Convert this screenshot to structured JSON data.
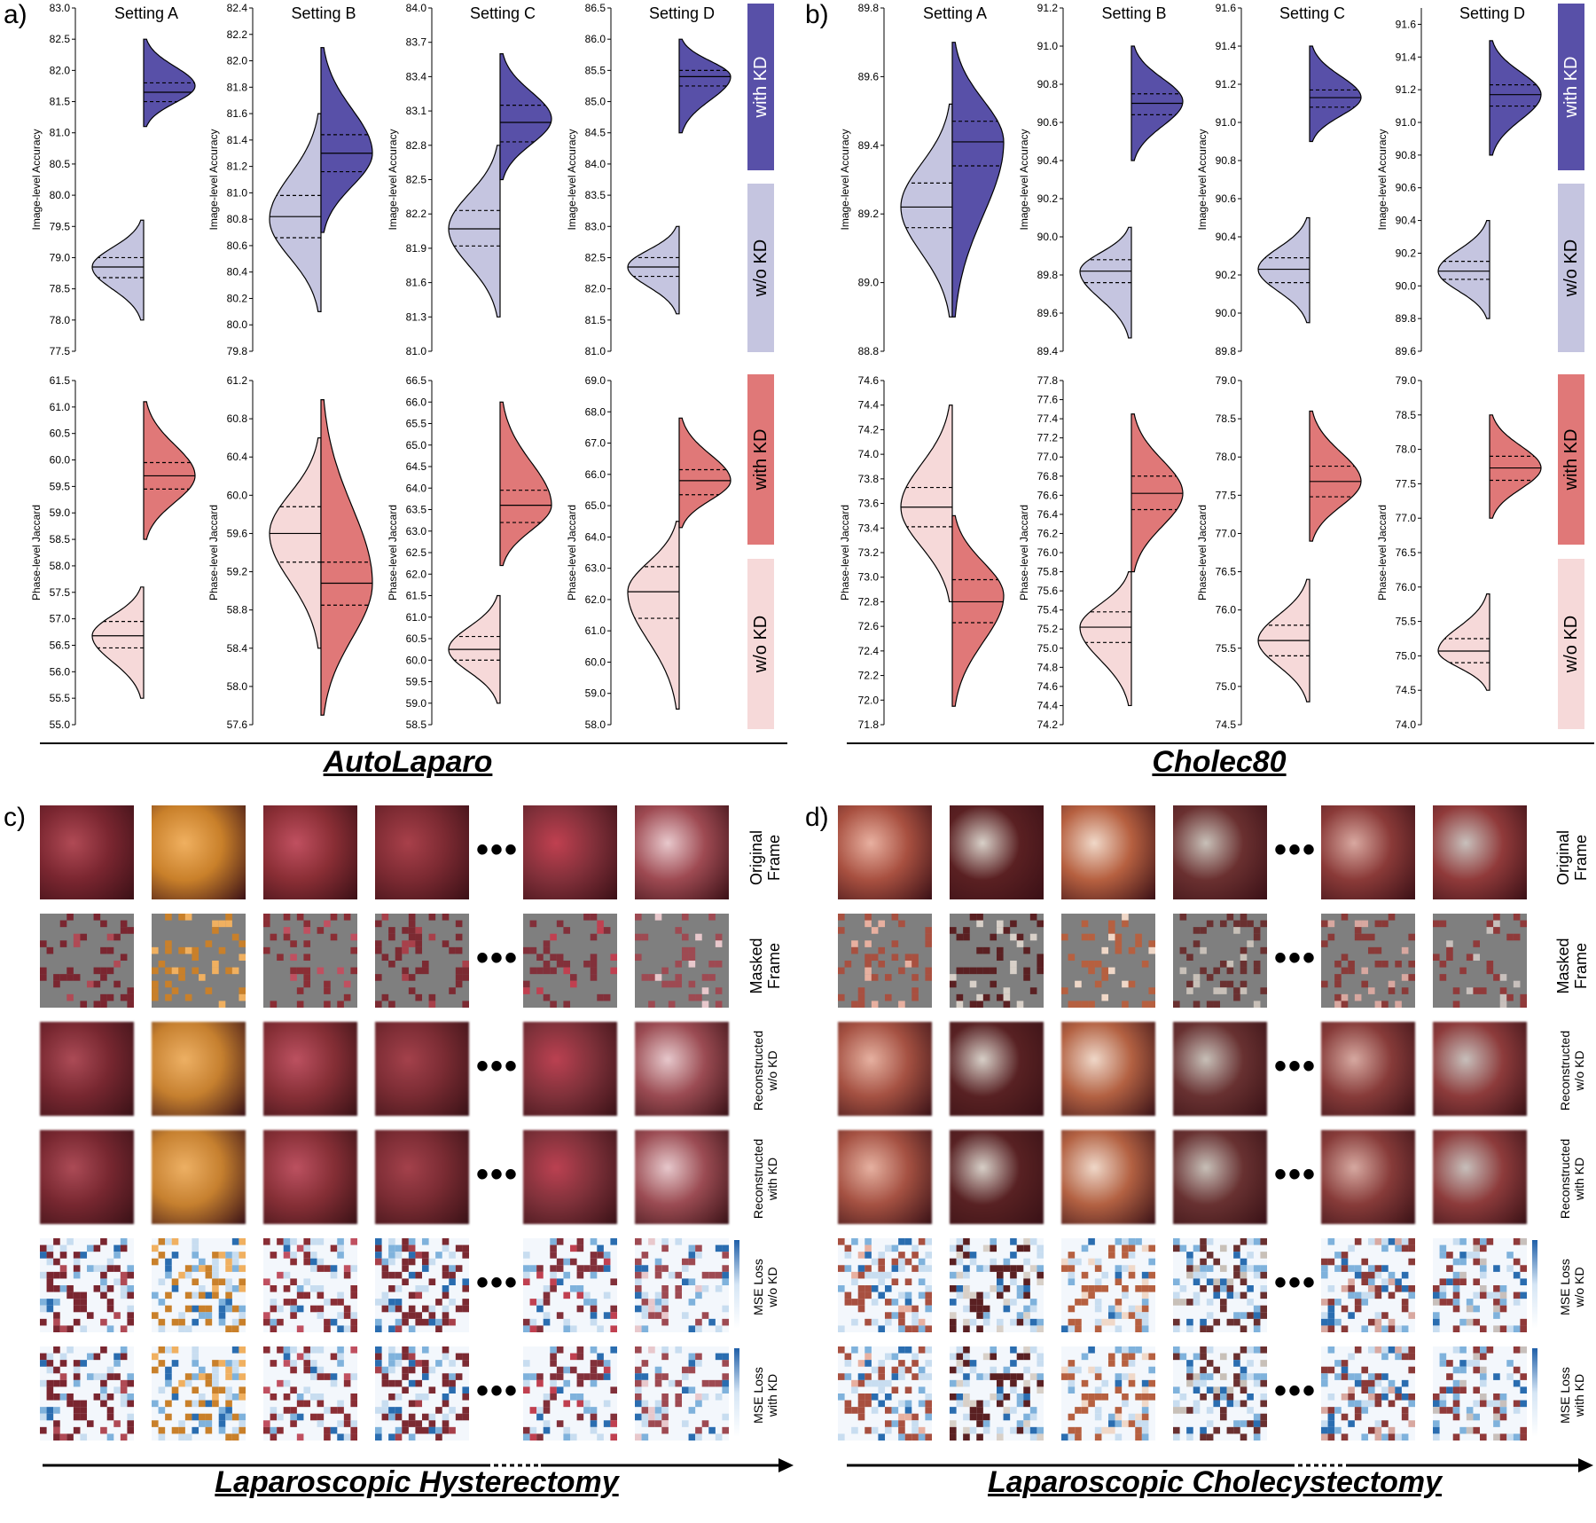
{
  "panels": {
    "a": {
      "letter": "a)",
      "group_title": "AutoLaparo"
    },
    "b": {
      "letter": "b)",
      "group_title": "Cholec80"
    },
    "c": {
      "letter": "c)",
      "bottom_title": "Laparoscopic Hysterectomy"
    },
    "d": {
      "letter": "d)",
      "bottom_title": "Laparoscopic Cholecystectomy"
    }
  },
  "settings": [
    "Setting A",
    "Setting B",
    "Setting C",
    "Setting D"
  ],
  "side_labels": {
    "with": "with KD",
    "without": "w/o KD"
  },
  "colors": {
    "acc_without": "#c5c5e0",
    "acc_with": "#5850a8",
    "jac_without": "#f6d9d9",
    "jac_with": "#e07878"
  },
  "row_labels": {
    "original_1": "Original",
    "original_2": "Frame",
    "masked_1": "Masked",
    "masked_2": "Frame",
    "recon_wo_1": "Reconstructed",
    "recon_wo_2": "w/o KD",
    "recon_w_1": "Reconstructed",
    "recon_w_2": "with KD",
    "mse_wo_1": "MSE Loss",
    "mse_wo_2": "w/o KD",
    "mse_w_1": "MSE Loss",
    "mse_w_2": "with KD"
  },
  "ellipsis": "•••",
  "chart_data": [
    {
      "type": "violin",
      "dataset": "AutoLaparo",
      "title": "Setting A",
      "ylabel": "Image-level Accuracy",
      "ylim": [
        77.5,
        83.0
      ],
      "ticks": [
        77.5,
        78.0,
        78.5,
        79.0,
        79.5,
        80.0,
        80.5,
        81.0,
        81.5,
        82.0,
        82.5,
        83.0
      ],
      "series": [
        {
          "name": "w/o KD",
          "median": 78.85,
          "q1": 78.68,
          "q3": 79.0,
          "min": 78.0,
          "max": 79.6,
          "mode": 78.85
        },
        {
          "name": "with KD",
          "median": 81.65,
          "q1": 81.5,
          "q3": 81.8,
          "min": 81.1,
          "max": 82.5,
          "mode": 81.75
        }
      ]
    },
    {
      "type": "violin",
      "dataset": "AutoLaparo",
      "title": "Setting B",
      "ylabel": "Image-level Accuracy",
      "ylim": [
        79.8,
        82.4
      ],
      "ticks": [
        79.8,
        80.0,
        80.2,
        80.4,
        80.6,
        80.8,
        81.0,
        81.2,
        81.4,
        81.6,
        81.8,
        82.0,
        82.2,
        82.4
      ],
      "series": [
        {
          "name": "w/o KD",
          "median": 80.82,
          "q1": 80.66,
          "q3": 80.98,
          "min": 80.1,
          "max": 81.6,
          "mode": 80.8
        },
        {
          "name": "with KD",
          "median": 81.3,
          "q1": 81.16,
          "q3": 81.44,
          "min": 80.7,
          "max": 82.1,
          "mode": 81.3
        }
      ]
    },
    {
      "type": "violin",
      "dataset": "AutoLaparo",
      "title": "Setting C",
      "ylabel": "Image-level Accuracy",
      "ylim": [
        81.0,
        84.0
      ],
      "ticks": [
        81.0,
        81.3,
        81.6,
        81.9,
        82.2,
        82.5,
        82.8,
        83.1,
        83.4,
        83.7,
        84.0
      ],
      "series": [
        {
          "name": "w/o KD",
          "median": 82.07,
          "q1": 81.92,
          "q3": 82.23,
          "min": 81.3,
          "max": 82.8,
          "mode": 82.07
        },
        {
          "name": "with KD",
          "median": 83.0,
          "q1": 82.83,
          "q3": 83.15,
          "min": 82.5,
          "max": 83.6,
          "mode": 83.03
        }
      ]
    },
    {
      "type": "violin",
      "dataset": "AutoLaparo",
      "title": "Setting D",
      "ylabel": "Image-level Accuracy",
      "ylim": [
        81.0,
        86.5
      ],
      "ticks": [
        81.0,
        81.5,
        82.0,
        82.5,
        83.0,
        83.5,
        84.0,
        84.5,
        85.0,
        85.5,
        86.0,
        86.5
      ],
      "series": [
        {
          "name": "w/o KD",
          "median": 82.35,
          "q1": 82.2,
          "q3": 82.5,
          "min": 81.6,
          "max": 83.0,
          "mode": 82.35
        },
        {
          "name": "with KD",
          "median": 85.4,
          "q1": 85.25,
          "q3": 85.5,
          "min": 84.5,
          "max": 86.0,
          "mode": 85.4
        }
      ]
    },
    {
      "type": "violin",
      "dataset": "AutoLaparo",
      "title": "",
      "ylabel": "Phase-level Jaccard",
      "ylim": [
        55.0,
        61.5
      ],
      "ticks": [
        55.0,
        55.5,
        56.0,
        56.5,
        57.0,
        57.5,
        58.0,
        58.5,
        59.0,
        59.5,
        60.0,
        60.5,
        61.0,
        61.5
      ],
      "series": [
        {
          "name": "w/o KD",
          "median": 56.68,
          "q1": 56.45,
          "q3": 56.95,
          "min": 55.5,
          "max": 57.6,
          "mode": 56.68
        },
        {
          "name": "with KD",
          "median": 59.7,
          "q1": 59.45,
          "q3": 59.95,
          "min": 58.5,
          "max": 61.1,
          "mode": 59.7
        }
      ]
    },
    {
      "type": "violin",
      "dataset": "AutoLaparo",
      "title": "",
      "ylabel": "Phase-level Jaccard",
      "ylim": [
        57.6,
        61.2
      ],
      "ticks": [
        57.6,
        58.0,
        58.4,
        58.8,
        59.2,
        59.6,
        60.0,
        60.4,
        60.8,
        61.2
      ],
      "series": [
        {
          "name": "w/o KD",
          "median": 59.6,
          "q1": 59.3,
          "q3": 59.88,
          "min": 58.4,
          "max": 60.6,
          "mode": 59.6
        },
        {
          "name": "with KD",
          "median": 59.08,
          "q1": 58.85,
          "q3": 59.3,
          "min": 57.7,
          "max": 61.0,
          "mode": 59.08
        }
      ]
    },
    {
      "type": "violin",
      "dataset": "AutoLaparo",
      "title": "",
      "ylabel": "Phase-level Jaccard",
      "ylim": [
        58.5,
        66.5
      ],
      "ticks": [
        58.5,
        59.0,
        59.5,
        60.0,
        60.5,
        61.0,
        61.5,
        62.0,
        62.5,
        63.0,
        63.5,
        64.0,
        64.5,
        65.0,
        65.5,
        66.0,
        66.5
      ],
      "series": [
        {
          "name": "w/o KD",
          "median": 60.25,
          "q1": 60.0,
          "q3": 60.55,
          "min": 59.0,
          "max": 61.5,
          "mode": 60.25
        },
        {
          "name": "with KD",
          "median": 63.6,
          "q1": 63.2,
          "q3": 63.95,
          "min": 62.2,
          "max": 66.0,
          "mode": 63.6
        }
      ]
    },
    {
      "type": "violin",
      "dataset": "AutoLaparo",
      "title": "",
      "ylabel": "Phase-level Jaccard",
      "ylim": [
        58.0,
        69.0
      ],
      "ticks": [
        58.0,
        59.0,
        60.0,
        61.0,
        62.0,
        63.0,
        64.0,
        65.0,
        66.0,
        67.0,
        68.0,
        69.0
      ],
      "series": [
        {
          "name": "w/o KD",
          "median": 62.25,
          "q1": 61.4,
          "q3": 63.05,
          "min": 58.5,
          "max": 64.5,
          "mode": 62.25
        },
        {
          "name": "with KD",
          "median": 65.8,
          "q1": 65.35,
          "q3": 66.15,
          "min": 64.3,
          "max": 67.8,
          "mode": 65.8
        }
      ]
    },
    {
      "type": "violin",
      "dataset": "Cholec80",
      "title": "Setting A",
      "ylabel": "Image-level Accuracy",
      "ylim": [
        88.8,
        89.8
      ],
      "ticks": [
        88.8,
        89.0,
        89.2,
        89.4,
        89.6,
        89.8
      ],
      "series": [
        {
          "name": "w/o KD",
          "median": 89.22,
          "q1": 89.16,
          "q3": 89.29,
          "min": 88.9,
          "max": 89.52,
          "mode": 89.22
        },
        {
          "name": "with KD",
          "median": 89.41,
          "q1": 89.34,
          "q3": 89.47,
          "min": 88.9,
          "max": 89.7,
          "mode": 89.41
        }
      ]
    },
    {
      "type": "violin",
      "dataset": "Cholec80",
      "title": "Setting B",
      "ylabel": "Image-level Accuracy",
      "ylim": [
        89.4,
        91.2
      ],
      "ticks": [
        89.4,
        89.6,
        89.8,
        90.0,
        90.2,
        90.4,
        90.6,
        90.8,
        91.0,
        91.2
      ],
      "series": [
        {
          "name": "w/o KD",
          "median": 89.82,
          "q1": 89.76,
          "q3": 89.88,
          "min": 89.47,
          "max": 90.05,
          "mode": 89.82
        },
        {
          "name": "with KD",
          "median": 90.7,
          "q1": 90.64,
          "q3": 90.75,
          "min": 90.4,
          "max": 91.0,
          "mode": 90.71
        }
      ]
    },
    {
      "type": "violin",
      "dataset": "Cholec80",
      "title": "Setting C",
      "ylabel": "Image-level Accuracy",
      "ylim": [
        89.8,
        91.6
      ],
      "ticks": [
        89.8,
        90.0,
        90.2,
        90.4,
        90.6,
        90.8,
        91.0,
        91.2,
        91.4,
        91.6
      ],
      "series": [
        {
          "name": "w/o KD",
          "median": 90.23,
          "q1": 90.16,
          "q3": 90.29,
          "min": 89.95,
          "max": 90.5,
          "mode": 90.23
        },
        {
          "name": "with KD",
          "median": 91.13,
          "q1": 91.08,
          "q3": 91.17,
          "min": 90.9,
          "max": 91.4,
          "mode": 91.13
        }
      ]
    },
    {
      "type": "violin",
      "dataset": "Cholec80",
      "title": "Setting D",
      "ylabel": "Image-level Accuracy",
      "ylim": [
        89.6,
        91.7
      ],
      "ticks": [
        89.6,
        89.8,
        90.0,
        90.2,
        90.4,
        90.6,
        90.8,
        91.0,
        91.2,
        91.4,
        91.6
      ],
      "series": [
        {
          "name": "w/o KD",
          "median": 90.09,
          "q1": 90.04,
          "q3": 90.15,
          "min": 89.8,
          "max": 90.4,
          "mode": 90.09
        },
        {
          "name": "with KD",
          "median": 91.17,
          "q1": 91.1,
          "q3": 91.23,
          "min": 90.8,
          "max": 91.5,
          "mode": 91.17
        }
      ]
    },
    {
      "type": "violin",
      "dataset": "Cholec80",
      "title": "",
      "ylabel": "Phase-level Jaccard",
      "ylim": [
        71.8,
        74.6
      ],
      "ticks": [
        71.8,
        72.0,
        72.2,
        72.4,
        72.6,
        72.8,
        73.0,
        73.2,
        73.4,
        73.6,
        73.8,
        74.0,
        74.2,
        74.4,
        74.6
      ],
      "series": [
        {
          "name": "w/o KD",
          "median": 73.57,
          "q1": 73.41,
          "q3": 73.73,
          "min": 72.8,
          "max": 74.4,
          "mode": 73.57
        },
        {
          "name": "with KD",
          "median": 72.8,
          "q1": 72.63,
          "q3": 72.98,
          "min": 71.95,
          "max": 73.5,
          "mode": 72.85
        }
      ]
    },
    {
      "type": "violin",
      "dataset": "Cholec80",
      "title": "",
      "ylabel": "Phase-level Jaccard",
      "ylim": [
        74.2,
        77.8
      ],
      "ticks": [
        74.2,
        74.4,
        74.6,
        74.8,
        75.0,
        75.2,
        75.4,
        75.6,
        75.8,
        76.0,
        76.2,
        76.4,
        76.6,
        76.8,
        77.0,
        77.2,
        77.4,
        77.6,
        77.8
      ],
      "series": [
        {
          "name": "w/o KD",
          "median": 75.22,
          "q1": 75.06,
          "q3": 75.38,
          "min": 74.4,
          "max": 75.8,
          "mode": 75.22
        },
        {
          "name": "with KD",
          "median": 76.62,
          "q1": 76.45,
          "q3": 76.8,
          "min": 75.8,
          "max": 77.45,
          "mode": 76.62
        }
      ]
    },
    {
      "type": "violin",
      "dataset": "Cholec80",
      "title": "",
      "ylabel": "Phase-level Jaccard",
      "ylim": [
        74.5,
        79.0
      ],
      "ticks": [
        74.5,
        75.0,
        75.5,
        76.0,
        76.5,
        77.0,
        77.5,
        78.0,
        78.5,
        79.0
      ],
      "series": [
        {
          "name": "w/o KD",
          "median": 75.6,
          "q1": 75.4,
          "q3": 75.8,
          "min": 74.8,
          "max": 76.4,
          "mode": 75.6
        },
        {
          "name": "with KD",
          "median": 77.68,
          "q1": 77.48,
          "q3": 77.88,
          "min": 76.9,
          "max": 78.6,
          "mode": 77.68
        }
      ]
    },
    {
      "type": "violin",
      "dataset": "Cholec80",
      "title": "",
      "ylabel": "Phase-level Jaccard",
      "ylim": [
        74.0,
        79.0
      ],
      "ticks": [
        74.0,
        74.5,
        75.0,
        75.5,
        76.0,
        76.5,
        77.0,
        77.5,
        78.0,
        78.5,
        79.0
      ],
      "series": [
        {
          "name": "w/o KD",
          "median": 75.07,
          "q1": 74.9,
          "q3": 75.25,
          "min": 74.5,
          "max": 75.9,
          "mode": 75.07
        },
        {
          "name": "with KD",
          "median": 77.73,
          "q1": 77.55,
          "q3": 77.9,
          "min": 77.0,
          "max": 78.5,
          "mode": 77.73
        }
      ]
    }
  ],
  "image_grids": {
    "c": {
      "base_colors": [
        "#7a2630",
        "#c9802a",
        "#8a2e35",
        "#7c2a32",
        "#82303a",
        "#9e4a52"
      ],
      "highlight_colors": [
        "#b04a55",
        "#f0b060",
        "#c05060",
        "#a8404a",
        "#c04050",
        "#e8c8cc"
      ]
    },
    "d": {
      "base_colors": [
        "#a85040",
        "#5a2022",
        "#b66040",
        "#6a3030",
        "#8a3a38",
        "#903a3a"
      ],
      "highlight_colors": [
        "#e8b0a0",
        "#d8d0c8",
        "#f0d8c8",
        "#c8c0b8",
        "#d8a8a0",
        "#c8c0bc"
      ]
    }
  }
}
